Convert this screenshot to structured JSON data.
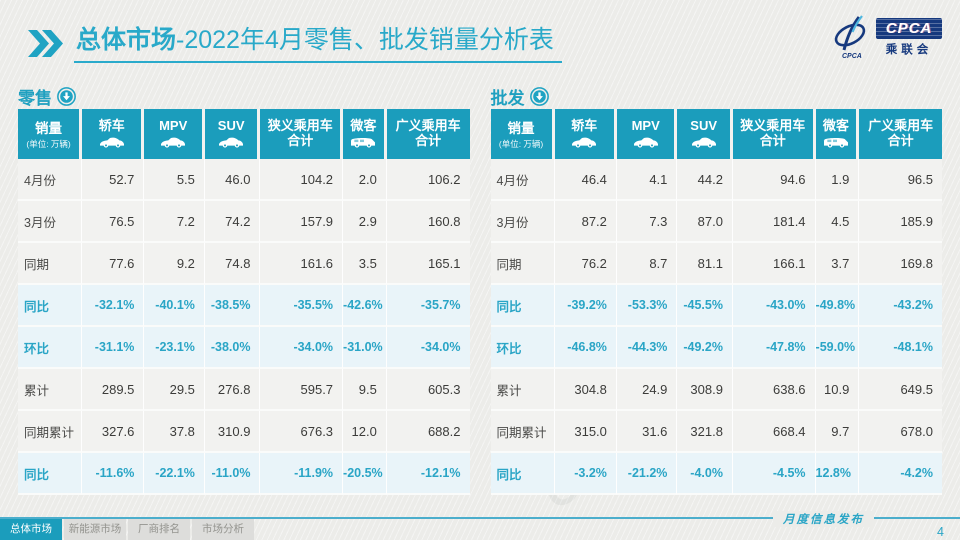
{
  "header": {
    "title_primary": "总体市场",
    "title_secondary": "-2022年4月零售、批发销量分析表"
  },
  "logo": {
    "acronym": "CPCA",
    "name_cn": "乘联会",
    "mark_text": "CPCA"
  },
  "watermark": "CPCA",
  "tables": [
    {
      "name": "零售",
      "header": {
        "title": "销量",
        "unit": "(单位: 万辆)",
        "columns": [
          {
            "id": "sedan",
            "label": "轿车",
            "icon": "car"
          },
          {
            "id": "mpv",
            "label": "MPV",
            "icon": "car"
          },
          {
            "id": "suv",
            "label": "SUV",
            "icon": "car"
          },
          {
            "id": "narrow-total",
            "label": "狭义乘用车",
            "label2": "合计"
          },
          {
            "id": "microvan",
            "label": "微客",
            "icon": "van"
          },
          {
            "id": "broad-total",
            "label": "广义乘用车",
            "label2": "合计"
          }
        ]
      },
      "rows": [
        {
          "label": "4月份",
          "type": "num",
          "values": [
            "52.7",
            "5.5",
            "46.0",
            "104.2",
            "2.0",
            "106.2"
          ]
        },
        {
          "label": "3月份",
          "type": "num",
          "values": [
            "76.5",
            "7.2",
            "74.2",
            "157.9",
            "2.9",
            "160.8"
          ]
        },
        {
          "label": "同期",
          "type": "num",
          "values": [
            "77.6",
            "9.2",
            "74.8",
            "161.6",
            "3.5",
            "165.1"
          ]
        },
        {
          "label": "同比",
          "type": "pct",
          "values": [
            "-32.1%",
            "-40.1%",
            "-38.5%",
            "-35.5%",
            "-42.6%",
            "-35.7%"
          ]
        },
        {
          "label": "环比",
          "type": "pct",
          "values": [
            "-31.1%",
            "-23.1%",
            "-38.0%",
            "-34.0%",
            "-31.0%",
            "-34.0%"
          ]
        },
        {
          "label": "累计",
          "type": "num",
          "values": [
            "289.5",
            "29.5",
            "276.8",
            "595.7",
            "9.5",
            "605.3"
          ]
        },
        {
          "label": "同期累计",
          "type": "num",
          "values": [
            "327.6",
            "37.8",
            "310.9",
            "676.3",
            "12.0",
            "688.2"
          ]
        },
        {
          "label": "同比",
          "type": "pct",
          "values": [
            "-11.6%",
            "-22.1%",
            "-11.0%",
            "-11.9%",
            "-20.5%",
            "-12.1%"
          ]
        }
      ]
    },
    {
      "name": "批发",
      "header": {
        "title": "销量",
        "unit": "(单位: 万辆)",
        "columns": [
          {
            "id": "sedan",
            "label": "轿车",
            "icon": "car"
          },
          {
            "id": "mpv",
            "label": "MPV",
            "icon": "car"
          },
          {
            "id": "suv",
            "label": "SUV",
            "icon": "car"
          },
          {
            "id": "narrow-total",
            "label": "狭义乘用车",
            "label2": "合计"
          },
          {
            "id": "microvan",
            "label": "微客",
            "icon": "van"
          },
          {
            "id": "broad-total",
            "label": "广义乘用车",
            "label2": "合计"
          }
        ]
      },
      "rows": [
        {
          "label": "4月份",
          "type": "num",
          "values": [
            "46.4",
            "4.1",
            "44.2",
            "94.6",
            "1.9",
            "96.5"
          ]
        },
        {
          "label": "3月份",
          "type": "num",
          "values": [
            "87.2",
            "7.3",
            "87.0",
            "181.4",
            "4.5",
            "185.9"
          ]
        },
        {
          "label": "同期",
          "type": "num",
          "values": [
            "76.2",
            "8.7",
            "81.1",
            "166.1",
            "3.7",
            "169.8"
          ]
        },
        {
          "label": "同比",
          "type": "pct",
          "values": [
            "-39.2%",
            "-53.3%",
            "-45.5%",
            "-43.0%",
            "-49.8%",
            "-43.2%"
          ]
        },
        {
          "label": "环比",
          "type": "pct",
          "values": [
            "-46.8%",
            "-44.3%",
            "-49.2%",
            "-47.8%",
            "-59.0%",
            "-48.1%"
          ]
        },
        {
          "label": "累计",
          "type": "num",
          "values": [
            "304.8",
            "24.9",
            "308.9",
            "638.6",
            "10.9",
            "649.5"
          ]
        },
        {
          "label": "同期累计",
          "type": "num",
          "values": [
            "315.0",
            "31.6",
            "321.8",
            "668.4",
            "9.7",
            "678.0"
          ]
        },
        {
          "label": "同比",
          "type": "pct",
          "values": [
            "-3.2%",
            "-21.2%",
            "-4.0%",
            "-4.5%",
            "12.8%",
            "-4.2%"
          ]
        }
      ]
    }
  ],
  "footer": {
    "tabs": [
      "总体市场",
      "新能源市场",
      "厂商排名",
      "市场分析"
    ],
    "note": "月度信息发布",
    "page_number": "4"
  }
}
